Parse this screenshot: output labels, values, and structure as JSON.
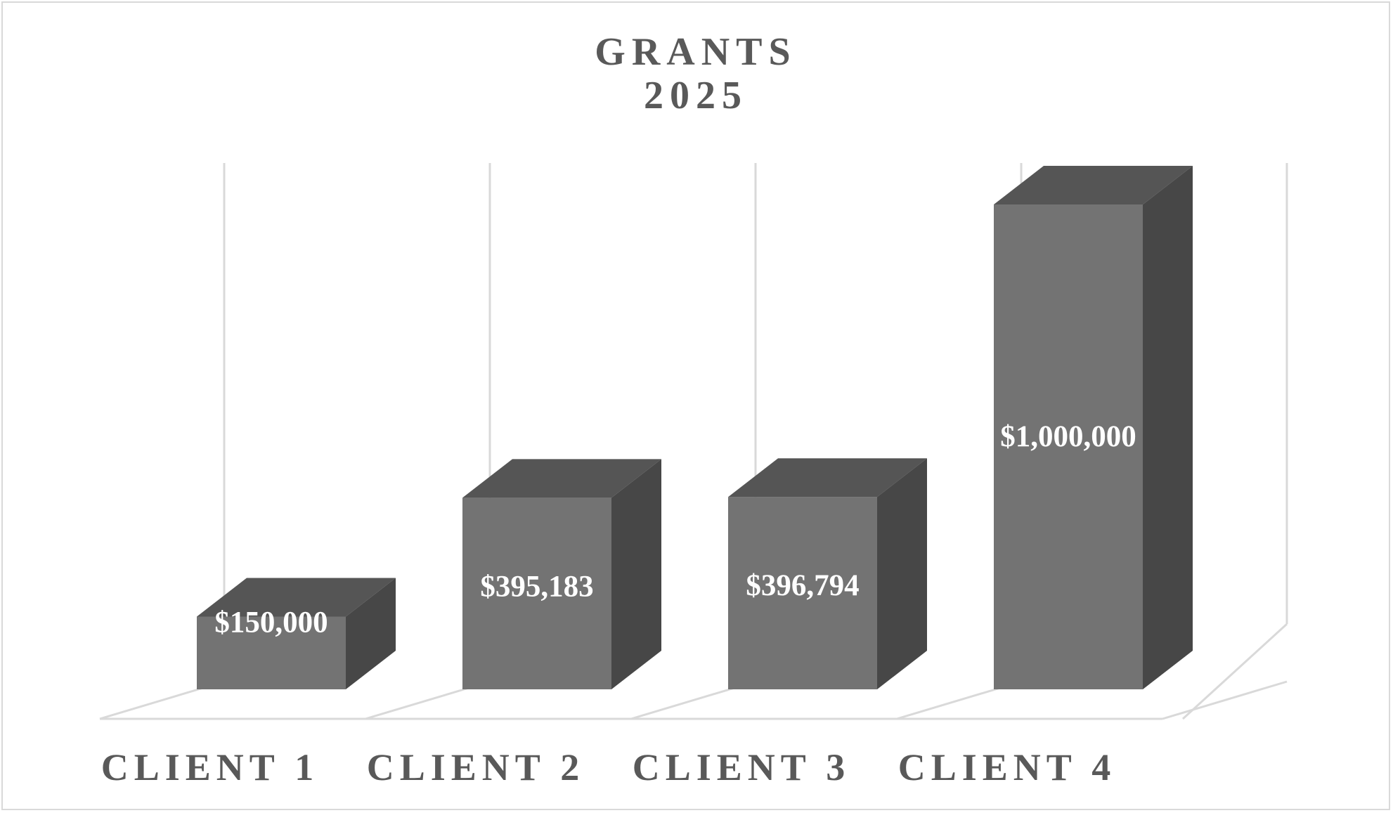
{
  "chart_data": {
    "type": "bar",
    "style": "3d-column",
    "title": "GRANTS",
    "subtitle": "2025",
    "categories": [
      "CLIENT 1",
      "CLIENT 2",
      "CLIENT 3",
      "CLIENT 4"
    ],
    "series": [
      {
        "values": [
          150000,
          395183,
          396794,
          1000000
        ],
        "data_labels": [
          "$150,000",
          "$395,183",
          "$396,794",
          "$1,000,000"
        ]
      }
    ],
    "ylim": [
      0,
      1100000
    ],
    "grid": true,
    "legend": "none",
    "colors": {
      "front": "#737373",
      "top": "#555555",
      "side": "#474747",
      "grid": "#d9d9d9",
      "text": "#595959",
      "label": "#ffffff"
    }
  }
}
